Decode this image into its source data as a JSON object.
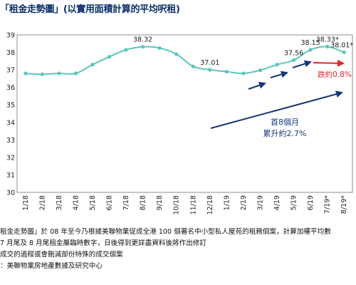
{
  "title": "「租金走勢圖」(以實用面積計算的平均呎租)",
  "chart_data": {
    "type": "line",
    "categories": [
      "1/18",
      "2/18",
      "3/18",
      "4/18",
      "5/18",
      "6/18",
      "7/18",
      "8/18",
      "9/18",
      "10/18",
      "11/18",
      "12/18",
      "1/19",
      "2/19",
      "3/19",
      "4/19",
      "5/19",
      "6/19",
      "7/19*",
      "8/19*"
    ],
    "values": [
      36.8,
      36.75,
      36.8,
      36.8,
      37.3,
      37.75,
      38.15,
      38.32,
      38.25,
      37.9,
      37.2,
      37.01,
      36.9,
      36.8,
      36.98,
      37.3,
      37.56,
      38.15,
      38.33,
      38.01
    ],
    "ylim": [
      30,
      39
    ],
    "yticks": [
      30,
      31,
      32,
      33,
      34,
      35,
      36,
      37,
      38,
      39
    ],
    "grid": false,
    "line_color": "#5cc6be",
    "data_labels": [
      {
        "index": 7,
        "text": "38.32"
      },
      {
        "index": 11,
        "text": "37.01"
      },
      {
        "index": 16,
        "text": "37.56"
      },
      {
        "index": 17,
        "text": "38.15"
      },
      {
        "index": 18,
        "text": "38.33*"
      },
      {
        "index": 19,
        "text": "38.01*"
      }
    ],
    "annotations": {
      "rise_label_line1": "首8個月",
      "rise_label_line2": "累升約2.7%",
      "drop_label": "跌約0.8%",
      "rise_color": "#14367a",
      "drop_color": "#e0262a"
    }
  },
  "notes": {
    "line1": "租金走勢圖」於 08 年至今乃根據美聯物業促成全港 100 個著名中小型私人屋苑的租務個案，計算加權平均數",
    "line2": "7 月尾及 8 月尾租金屬臨時數字，日後得到更詳盡資料後將作出修訂",
    "line3": "成交的過程或會刪減部份特殊的成交個案",
    "line4": "：美聯物業房地產數據及研究中心"
  }
}
